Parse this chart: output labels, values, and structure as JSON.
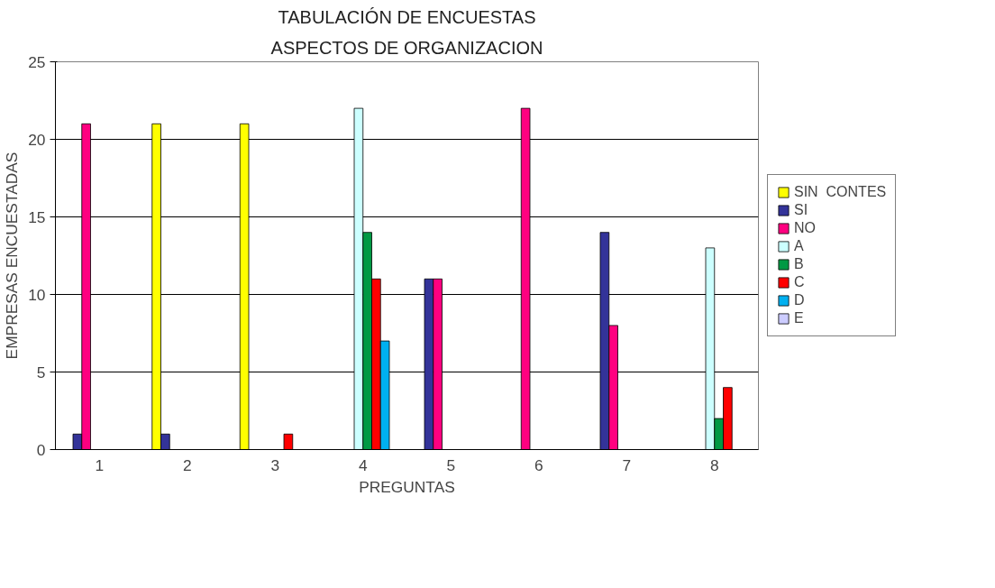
{
  "chart_data": {
    "type": "bar",
    "title": "TABULACIÓN DE ENCUESTAS",
    "subtitle": "ASPECTOS DE ORGANIZACION",
    "xlabel": "PREGUNTAS",
    "ylabel": "EMPRESAS ENCUESTADAS",
    "categories": [
      "1",
      "2",
      "3",
      "4",
      "5",
      "6",
      "7",
      "8"
    ],
    "series": [
      {
        "name": "SIN  CONTES",
        "color": "#ffff00",
        "values": [
          null,
          21,
          21,
          null,
          null,
          null,
          null,
          null
        ]
      },
      {
        "name": "SI",
        "color": "#333399",
        "values": [
          1,
          1,
          null,
          null,
          11,
          null,
          14,
          null
        ]
      },
      {
        "name": "NO",
        "color": "#ff0080",
        "values": [
          21,
          null,
          null,
          null,
          11,
          22,
          8,
          null
        ]
      },
      {
        "name": "A",
        "color": "#ccffff",
        "values": [
          null,
          null,
          null,
          22,
          null,
          null,
          null,
          13
        ]
      },
      {
        "name": "B",
        "color": "#009944",
        "values": [
          null,
          null,
          null,
          14,
          null,
          null,
          null,
          2
        ]
      },
      {
        "name": "C",
        "color": "#ff0000",
        "values": [
          null,
          null,
          1,
          11,
          null,
          null,
          null,
          4
        ]
      },
      {
        "name": "D",
        "color": "#00b0f0",
        "values": [
          null,
          null,
          null,
          7,
          null,
          null,
          null,
          null
        ]
      },
      {
        "name": "E",
        "color": "#ccccff",
        "values": [
          null,
          null,
          null,
          null,
          null,
          null,
          null,
          null
        ]
      }
    ],
    "ylim": [
      0,
      25
    ],
    "yticks": [
      0,
      5,
      10,
      15,
      20,
      25
    ],
    "grid": "y",
    "legend": "right"
  }
}
